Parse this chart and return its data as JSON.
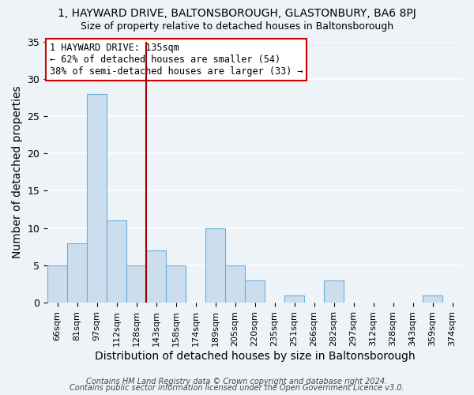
{
  "title": "1, HAYWARD DRIVE, BALTONSBOROUGH, GLASTONBURY, BA6 8PJ",
  "subtitle": "Size of property relative to detached houses in Baltonsborough",
  "xlabel": "Distribution of detached houses by size in Baltonsborough",
  "ylabel": "Number of detached properties",
  "footer_line1": "Contains HM Land Registry data © Crown copyright and database right 2024.",
  "footer_line2": "Contains public sector information licensed under the Open Government Licence v3.0.",
  "bar_labels": [
    "66sqm",
    "81sqm",
    "97sqm",
    "112sqm",
    "128sqm",
    "143sqm",
    "158sqm",
    "174sqm",
    "189sqm",
    "205sqm",
    "220sqm",
    "235sqm",
    "251sqm",
    "266sqm",
    "282sqm",
    "297sqm",
    "312sqm",
    "328sqm",
    "343sqm",
    "359sqm",
    "374sqm"
  ],
  "bar_values": [
    5,
    8,
    28,
    11,
    5,
    7,
    5,
    0,
    10,
    5,
    3,
    0,
    1,
    0,
    3,
    0,
    0,
    0,
    0,
    1,
    0
  ],
  "bar_color": "#ccdded",
  "bar_edge_color": "#6aafd6",
  "vline_color": "#990000",
  "annotation_text": "1 HAYWARD DRIVE: 135sqm\n← 62% of detached houses are smaller (54)\n38% of semi-detached houses are larger (33) →",
  "annotation_box_color": "white",
  "annotation_box_edge": "#cc0000",
  "ylim": [
    0,
    35
  ],
  "yticks": [
    0,
    5,
    10,
    15,
    20,
    25,
    30,
    35
  ],
  "bg_color": "#eef3f8",
  "grid_color": "white",
  "title_fontsize": 10,
  "subtitle_fontsize": 9,
  "axis_label_fontsize": 9,
  "tick_fontsize": 8,
  "footer_fontsize": 7
}
